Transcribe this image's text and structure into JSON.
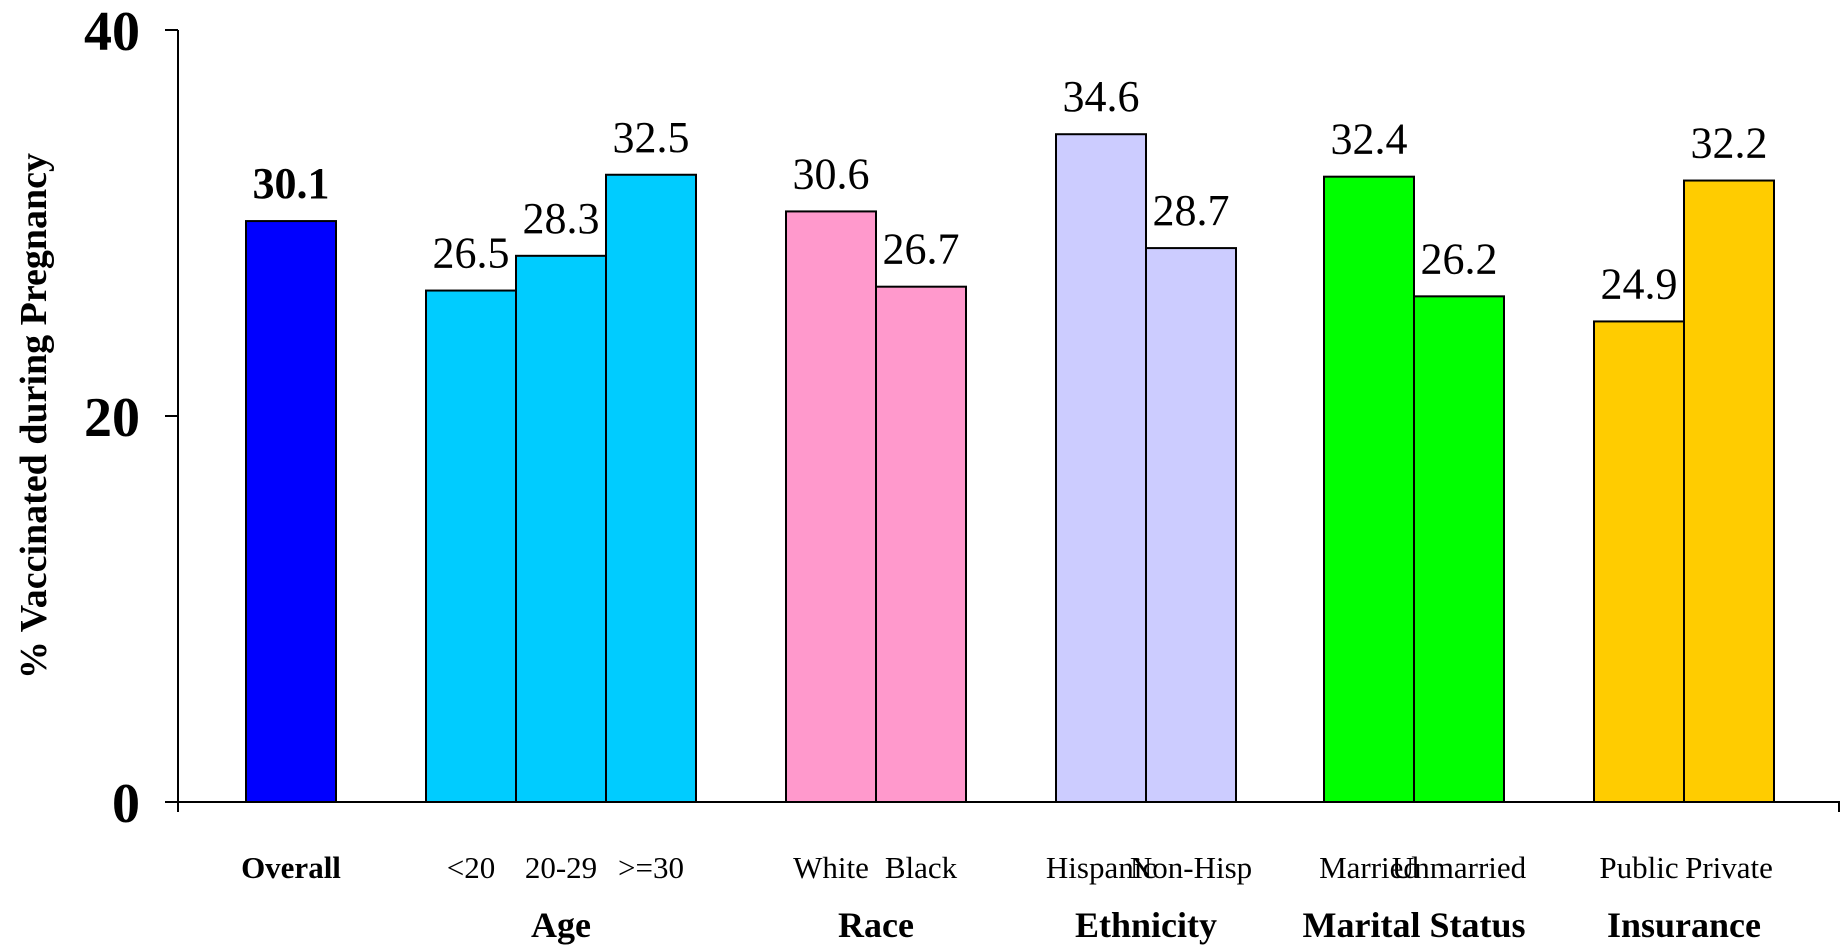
{
  "chart_data": {
    "type": "bar",
    "ylabel": "% Vaccinated during Pregnancy",
    "xlabel": "",
    "ylim": [
      0,
      40
    ],
    "yticks": [
      "0",
      "20",
      "40"
    ],
    "grid": false,
    "groups": [
      {
        "name": "",
        "bars": [
          {
            "category": "Overall",
            "value": 30.1,
            "label": "30.1",
            "color": "#0000ff",
            "bold": true
          }
        ]
      },
      {
        "name": "Age",
        "bars": [
          {
            "category": "<20",
            "value": 26.5,
            "label": "26.5",
            "color": "#00ccff"
          },
          {
            "category": "20-29",
            "value": 28.3,
            "label": "28.3",
            "color": "#00ccff"
          },
          {
            "category": ">=30",
            "value": 32.5,
            "label": "32.5",
            "color": "#00ccff"
          }
        ]
      },
      {
        "name": "Race",
        "bars": [
          {
            "category": "White",
            "value": 30.6,
            "label": "30.6",
            "color": "#ff99cc"
          },
          {
            "category": "Black",
            "value": 26.7,
            "label": "26.7",
            "color": "#ff99cc"
          }
        ]
      },
      {
        "name": "Ethnicity",
        "bars": [
          {
            "category": "Hispanic",
            "value": 34.6,
            "label": "34.6",
            "color": "#ccccff"
          },
          {
            "category": "Non-Hisp",
            "value": 28.7,
            "label": "28.7",
            "color": "#ccccff"
          }
        ]
      },
      {
        "name": "Marital Status",
        "bars": [
          {
            "category": "Married",
            "value": 32.4,
            "label": "32.4",
            "color": "#00ff00"
          },
          {
            "category": "Unmarried",
            "value": 26.2,
            "label": "26.2",
            "color": "#00ff00"
          }
        ]
      },
      {
        "name": "Insurance",
        "bars": [
          {
            "category": "Public",
            "value": 24.9,
            "label": "24.9",
            "color": "#ffcc00"
          },
          {
            "category": "Private",
            "value": 32.2,
            "label": "32.2",
            "color": "#ffcc00"
          }
        ]
      }
    ]
  }
}
